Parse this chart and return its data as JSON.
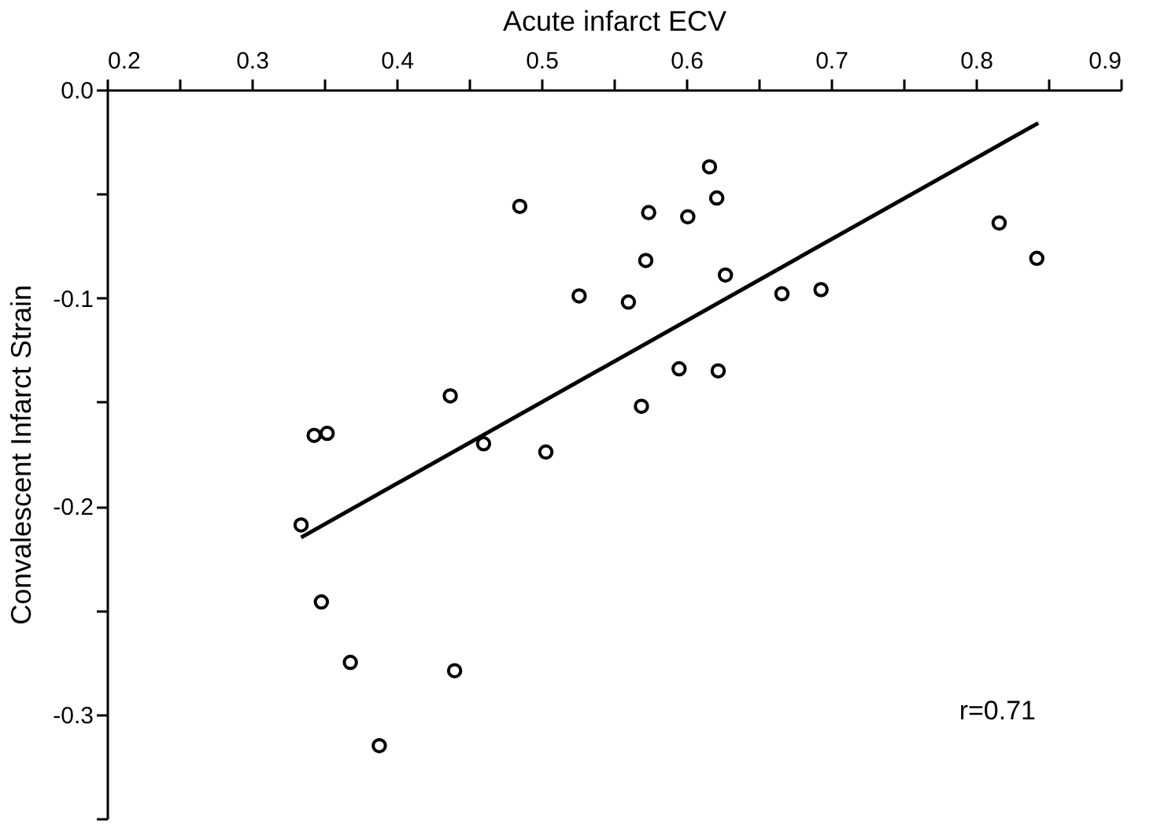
{
  "chart_data": {
    "type": "scatter",
    "xlabel": "Acute infarct ECV",
    "ylabel": "Convalescent Infarct Strain",
    "grid": false,
    "series": [
      {
        "marker": "circle",
        "color": "#000000",
        "x": [
          0.334,
          0.343,
          0.352,
          0.348,
          0.368,
          0.388,
          0.437,
          0.44,
          0.46,
          0.485,
          0.503,
          0.526,
          0.56,
          0.569,
          0.572,
          0.574,
          0.601,
          0.616,
          0.621,
          0.595,
          0.622,
          0.627,
          0.666,
          0.693,
          0.816,
          0.842
        ],
        "values": [
          -0.209,
          -0.166,
          -0.165,
          -0.246,
          -0.275,
          -0.315,
          -0.147,
          -0.279,
          -0.17,
          -0.056,
          -0.174,
          -0.099,
          -0.102,
          -0.152,
          -0.082,
          -0.059,
          -0.061,
          -0.037,
          -0.052,
          -0.134,
          -0.135,
          -0.089,
          -0.098,
          -0.096,
          -0.064,
          -0.081
        ]
      },
      {
        "type": "line",
        "color": "#000000",
        "x": [
          0.334,
          0.843
        ],
        "values": [
          -0.215,
          -0.016
        ]
      }
    ],
    "xlim": [
      0.2,
      0.9
    ],
    "xticks": [
      {
        "value": 0.2,
        "label": "0.2"
      },
      {
        "value": 0.25,
        "label": null
      },
      {
        "value": 0.3,
        "label": "0.3"
      },
      {
        "value": 0.35,
        "label": null
      },
      {
        "value": 0.4,
        "label": "0.4"
      },
      {
        "value": 0.45,
        "label": null
      },
      {
        "value": 0.5,
        "label": "0.5"
      },
      {
        "value": 0.55,
        "label": null
      },
      {
        "value": 0.6,
        "label": "0.6"
      },
      {
        "value": 0.65,
        "label": null
      },
      {
        "value": 0.7,
        "label": "0.7"
      },
      {
        "value": 0.75,
        "label": null
      },
      {
        "value": 0.8,
        "label": "0.8"
      },
      {
        "value": 0.85,
        "label": null
      },
      {
        "value": 0.9,
        "label": "0.9"
      }
    ],
    "ylim": [
      -0.35,
      0
    ],
    "yticks": [
      {
        "value": 0,
        "label": "0.0"
      },
      {
        "value": -0.05,
        "label": null
      },
      {
        "value": -0.1,
        "label": "-0.1"
      },
      {
        "value": -0.15,
        "label": null
      },
      {
        "value": -0.2,
        "label": "-0.2"
      },
      {
        "value": -0.25,
        "label": null
      },
      {
        "value": -0.3,
        "label": "-0.3"
      },
      {
        "value": -0.35,
        "label": null
      }
    ],
    "annotations": [
      "r=0.71"
    ]
  }
}
